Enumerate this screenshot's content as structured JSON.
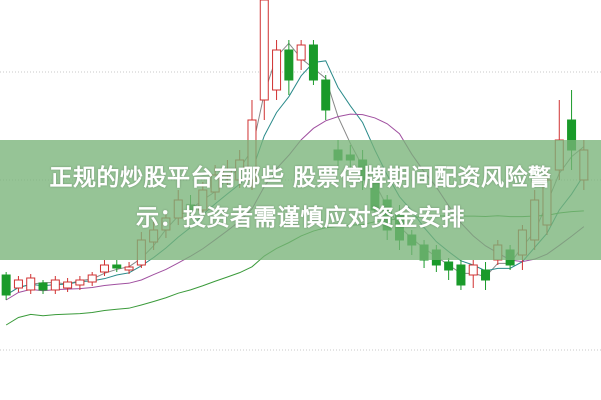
{
  "headline": {
    "line1": "正规的炒股平台有哪些 股票停牌期间配资风险警",
    "line2": "示：投资者需谨慎应对资金安排"
  },
  "colors": {
    "up": "#d03030",
    "down": "#1a9a2a",
    "band": "#78b478",
    "ma5": "#888888",
    "ma10": "#2a8a8a",
    "ma20": "#a050a0",
    "ma60": "#3a9a3a",
    "grid": "#c8c8c8"
  },
  "chart_data": {
    "type": "candlestick",
    "ylim": [
      0,
      400
    ],
    "grid": true,
    "moving_averages": [
      "ma5",
      "ma10",
      "ma20",
      "ma60"
    ],
    "candles": [
      [
        125,
        105,
        128,
        100
      ],
      [
        112,
        120,
        124,
        108
      ],
      [
        110,
        122,
        126,
        106
      ],
      [
        117,
        110,
        120,
        106
      ],
      [
        110,
        120,
        124,
        106
      ],
      [
        112,
        118,
        122,
        108
      ],
      [
        115,
        120,
        124,
        110
      ],
      [
        118,
        125,
        128,
        114
      ],
      [
        128,
        135,
        140,
        124
      ],
      [
        135,
        132,
        140,
        128
      ],
      [
        130,
        133,
        138,
        126
      ],
      [
        135,
        160,
        168,
        132
      ],
      [
        158,
        170,
        178,
        150
      ],
      [
        170,
        182,
        190,
        162
      ],
      [
        182,
        200,
        210,
        175
      ],
      [
        195,
        190,
        205,
        182
      ],
      [
        190,
        210,
        218,
        185
      ],
      [
        208,
        225,
        235,
        200
      ],
      [
        225,
        230,
        240,
        215
      ],
      [
        220,
        240,
        250,
        212
      ],
      [
        220,
        280,
        300,
        210
      ],
      [
        300,
        400,
        400,
        280
      ],
      [
        310,
        350,
        360,
        300
      ],
      [
        350,
        320,
        360,
        305
      ],
      [
        340,
        355,
        360,
        330
      ],
      [
        355,
        320,
        360,
        315
      ],
      [
        320,
        290,
        325,
        280
      ],
      [
        250,
        240,
        260,
        230
      ],
      [
        245,
        240,
        255,
        230
      ],
      [
        240,
        220,
        250,
        210
      ],
      [
        220,
        190,
        225,
        180
      ],
      [
        200,
        170,
        205,
        160
      ],
      [
        185,
        160,
        195,
        150
      ],
      [
        165,
        155,
        170,
        145
      ],
      [
        155,
        140,
        160,
        132
      ],
      [
        150,
        135,
        155,
        128
      ],
      [
        138,
        130,
        142,
        120
      ],
      [
        135,
        115,
        140,
        110
      ],
      [
        125,
        135,
        140,
        112
      ],
      [
        130,
        120,
        138,
        110
      ],
      [
        140,
        155,
        160,
        135
      ],
      [
        150,
        135,
        155,
        130
      ],
      [
        145,
        170,
        175,
        130
      ],
      [
        160,
        200,
        210,
        150
      ],
      [
        175,
        220,
        230,
        165
      ],
      [
        230,
        260,
        300,
        220
      ],
      [
        280,
        250,
        310,
        230
      ],
      [
        220,
        250,
        260,
        210
      ]
    ]
  }
}
